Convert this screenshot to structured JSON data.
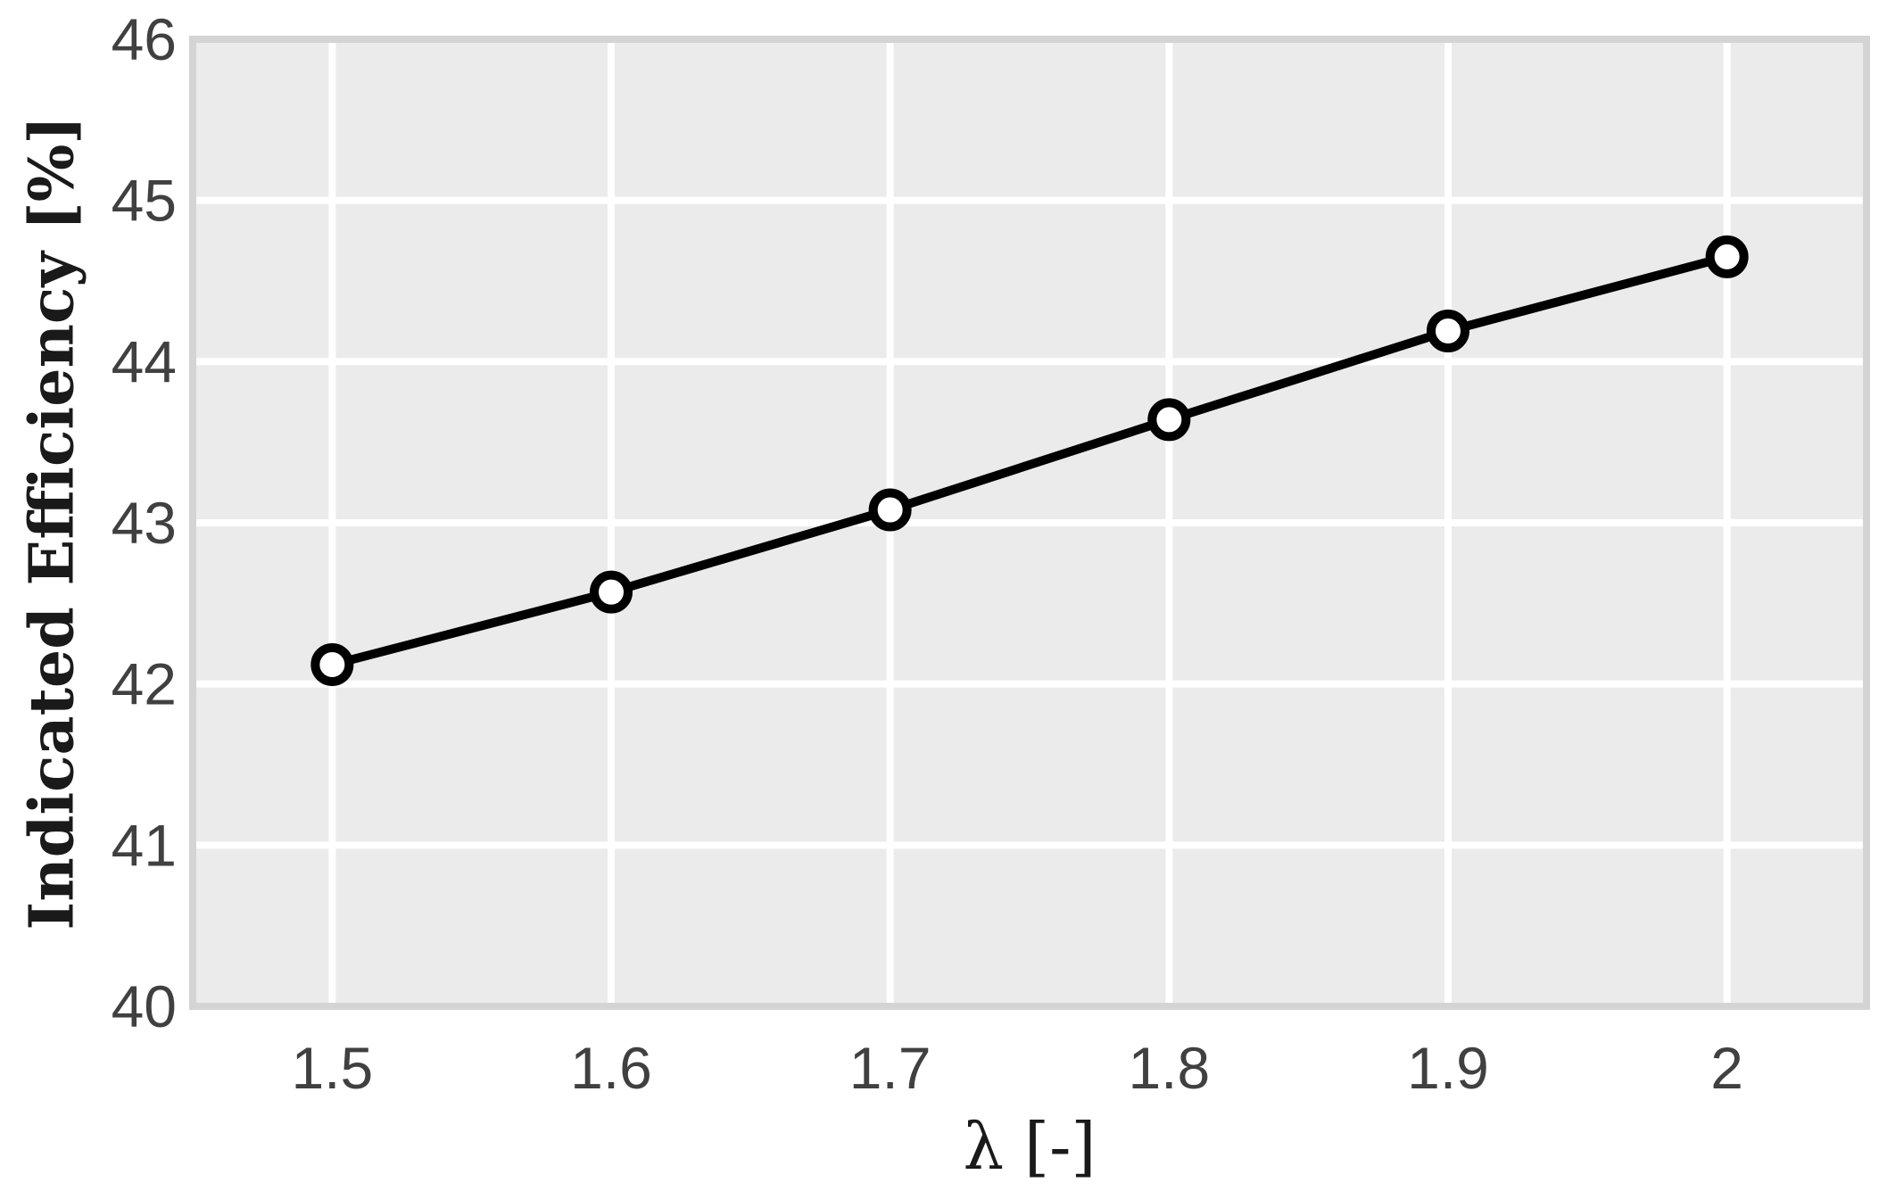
{
  "chart_data": {
    "type": "line",
    "title": "",
    "xlabel": "λ [-]",
    "ylabel": "Indicated Efficiency [%]",
    "xlim": [
      1.45,
      2.05
    ],
    "ylim": [
      40,
      46
    ],
    "x_ticks": [
      1.5,
      1.6,
      1.7,
      1.8,
      1.9,
      2.0
    ],
    "x_tick_labels": [
      "1.5",
      "1.6",
      "1.7",
      "1.8",
      "1.9",
      "2"
    ],
    "y_ticks": [
      40,
      41,
      42,
      43,
      44,
      45,
      46
    ],
    "y_tick_labels": [
      "40",
      "41",
      "42",
      "43",
      "44",
      "45",
      "46"
    ],
    "grid": true,
    "legend": "none",
    "series": [
      {
        "x": [
          1.5,
          1.6,
          1.7,
          1.8,
          1.9,
          2.0
        ],
        "values": [
          42.12,
          42.57,
          43.08,
          43.64,
          44.19,
          44.65
        ],
        "marker": "open-circle"
      }
    ],
    "colors": {
      "plot_background": "#ebebeb",
      "frame": "#d4d4d4",
      "grid": "#ffffff",
      "line": "#000000",
      "marker_fill": "#ffffff"
    }
  }
}
